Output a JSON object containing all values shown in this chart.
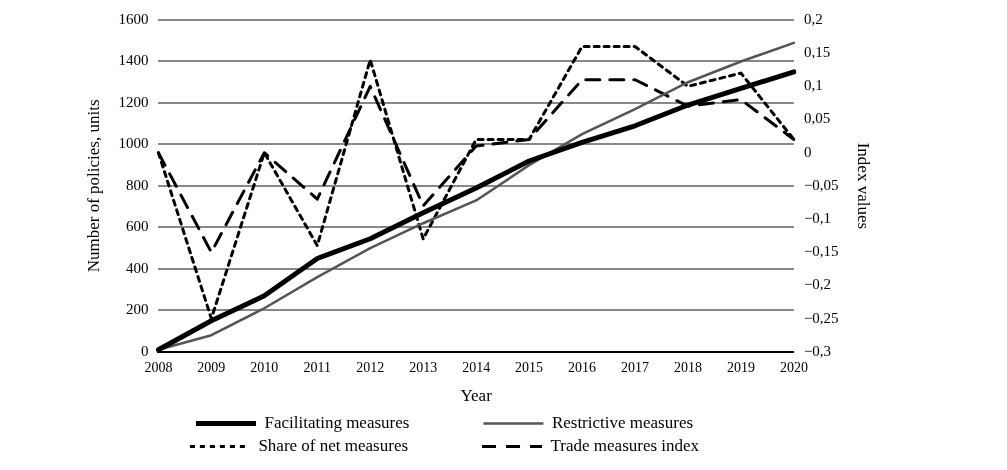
{
  "chart_data": {
    "type": "line",
    "xlabel": "Year",
    "ylabel": "Number of policies, units",
    "y2label": "Index values",
    "categories": [
      "2008",
      "2009",
      "2010",
      "2011",
      "2012",
      "2013",
      "2014",
      "2015",
      "2016",
      "2017",
      "2018",
      "2019",
      "2020"
    ],
    "series": [
      {
        "name": "Facilitating measures",
        "color": "#000000",
        "line_style": "solid",
        "values": [
          10,
          150,
          270,
          450,
          545,
          670,
          790,
          920,
          1010,
          1090,
          1190,
          1270,
          1350
        ]
      },
      {
        "name": "Restrictive measures",
        "color": "#555555",
        "line_style": "solid",
        "values": [
          10,
          80,
          210,
          360,
          500,
          620,
          730,
          900,
          1050,
          1170,
          1300,
          1400,
          1490
        ]
      },
      {
        "name": "Share of net measures",
        "color": "#000000",
        "line_style": "dotted",
        "axis": "y2",
        "values": [
          0,
          -0.25,
          0,
          -0.14,
          0.14,
          -0.13,
          0.02,
          0.02,
          0.16,
          0.16,
          0.1,
          0.12,
          0.02
        ]
      },
      {
        "name": "Trade measures index",
        "color": "#000000",
        "line_style": "dashed",
        "axis": "y2",
        "values": [
          0,
          -0.15,
          0,
          -0.07,
          0.1,
          -0.08,
          0.01,
          0.02,
          0.11,
          0.11,
          0.07,
          0.08,
          0.02
        ]
      }
    ],
    "ylim": [
      0,
      1600
    ],
    "yticks": [
      0,
      200,
      400,
      600,
      800,
      1000,
      1200,
      1400,
      1600
    ],
    "y2lim": [
      -0.3,
      0.2
    ],
    "y2ticks": [
      {
        "value": -0.3,
        "label": "−0,3"
      },
      {
        "value": -0.25,
        "label": "−0,25"
      },
      {
        "value": -0.2,
        "label": "−0,2"
      },
      {
        "value": -0.15,
        "label": "−0,15"
      },
      {
        "value": -0.1,
        "label": "−0,1"
      },
      {
        "value": -0.05,
        "label": "−0,05"
      },
      {
        "value": 0,
        "label": "0"
      },
      {
        "value": 0.05,
        "label": "0,05"
      },
      {
        "value": 0.1,
        "label": "0,1"
      },
      {
        "value": 0.15,
        "label": "0,15"
      },
      {
        "value": 0.2,
        "label": "0,2"
      }
    ],
    "grid": "y",
    "legend": "bottom",
    "marker": "none"
  }
}
